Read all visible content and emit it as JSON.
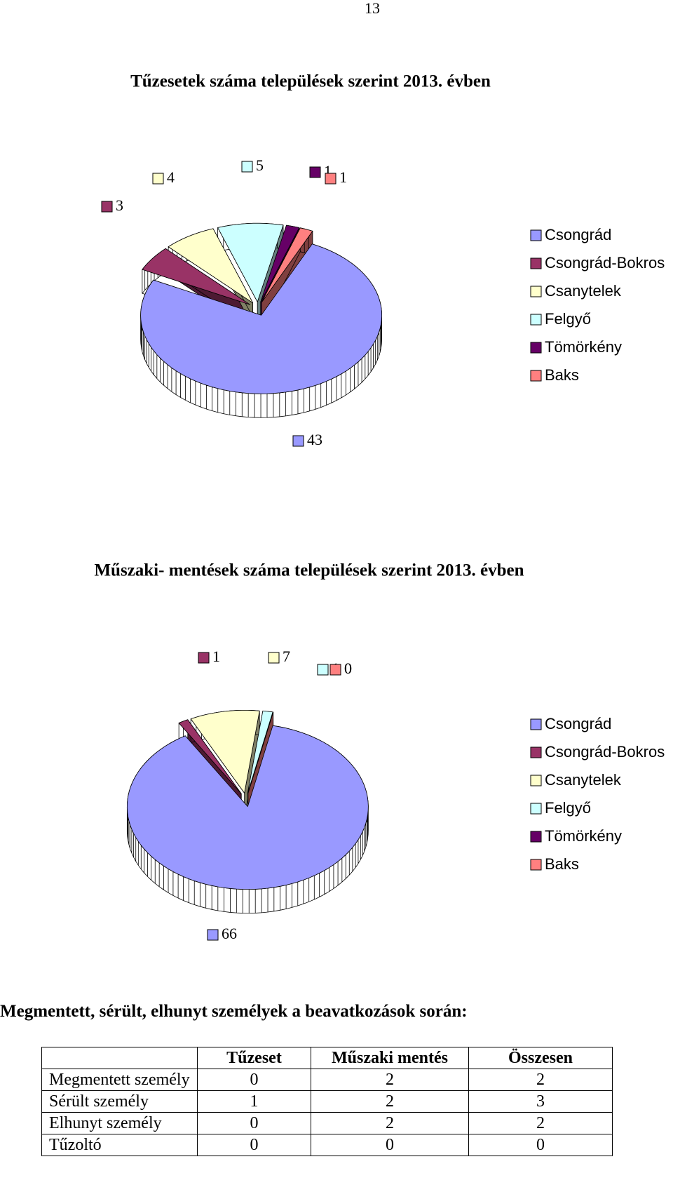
{
  "page_number": "13",
  "chart_data": [
    {
      "type": "pie",
      "title": "Tűzesetek száma települések szerint 2013. évben",
      "categories": [
        "Csongrád",
        "Csongrád-Bokros",
        "Csanytelek",
        "Felgyő",
        "Tömörkény",
        "Baks"
      ],
      "values": [
        43,
        3,
        4,
        5,
        1,
        1
      ],
      "colors": [
        "#9999ff",
        "#993366",
        "#ffffcc",
        "#ccffff",
        "#660066",
        "#ff8080"
      ]
    },
    {
      "type": "pie",
      "title": "Műszaki- mentések száma települések szerint 2013. évben",
      "categories": [
        "Csongrád",
        "Csongrád-Bokros",
        "Csanytelek",
        "Felgyő",
        "Tömörkény",
        "Baks"
      ],
      "values": [
        66,
        1,
        7,
        1,
        0,
        0
      ],
      "colors": [
        "#9999ff",
        "#993366",
        "#ffffcc",
        "#ccffff",
        "#660066",
        "#ff8080"
      ]
    }
  ],
  "section_heading": "Megmentett, sérült, elhunyt személyek a beavatkozások során:",
  "table": {
    "header": [
      "Tűzeset",
      "Műszaki mentés",
      "Összesen"
    ],
    "rows": [
      [
        "Megmentett személy",
        0,
        2,
        2
      ],
      [
        "Sérült személy",
        1,
        2,
        3
      ],
      [
        "Elhunyt személy",
        0,
        2,
        2
      ],
      [
        "Tűzoltó",
        0,
        0,
        0
      ]
    ]
  }
}
